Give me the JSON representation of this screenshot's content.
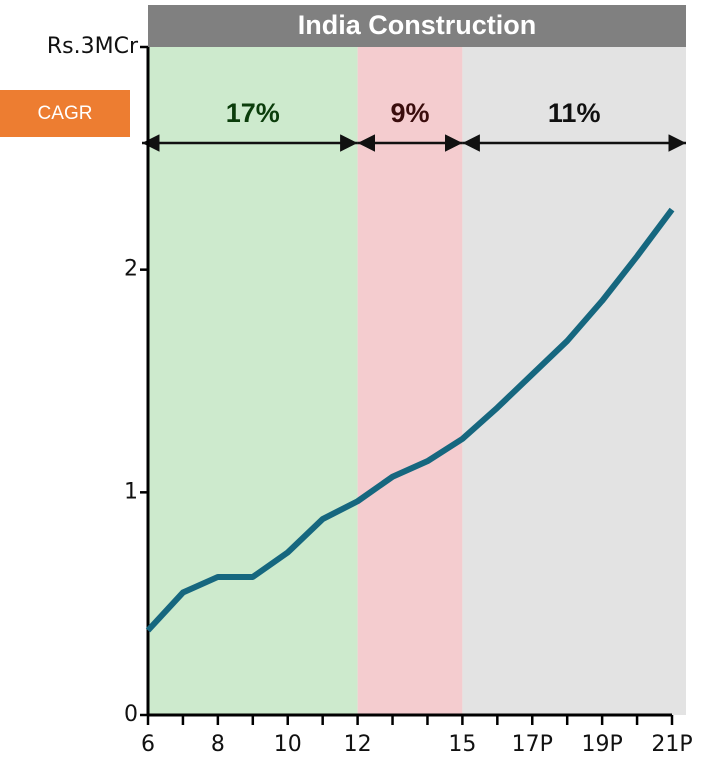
{
  "chart_data": {
    "type": "line",
    "title": "India Construction",
    "title_bar_color": "#808080",
    "cagr_label": "CAGR",
    "cagr_color": "#ed7d31",
    "categories": [
      "6",
      null,
      "8",
      null,
      "10",
      null,
      "12",
      null,
      null,
      "15",
      null,
      "17P",
      null,
      "19P",
      null,
      "21P"
    ],
    "series": [
      {
        "color": "#16677f",
        "values": [
          0.38,
          0.55,
          0.62,
          0.62,
          0.73,
          0.88,
          0.96,
          1.07,
          1.14,
          1.24,
          1.38,
          1.53,
          1.68,
          1.86,
          2.06,
          2.27
        ]
      }
    ],
    "ylim": [
      0,
      3
    ],
    "yticks": [
      0,
      1,
      2,
      {
        "value": 3,
        "label": "Rs.3MCr"
      }
    ],
    "periods": [
      {
        "label": "17%",
        "from": "6",
        "to": "12",
        "color": "#cdeacd",
        "text_color": "#0b3d0b"
      },
      {
        "label": "9%",
        "from": "12",
        "to": "15",
        "color": "#f4cccf",
        "text_color": "#3a0d0d"
      },
      {
        "label": "11%",
        "from": "15",
        "to": "21P",
        "color": "#e3e3e3",
        "text_color": "#111"
      }
    ]
  }
}
